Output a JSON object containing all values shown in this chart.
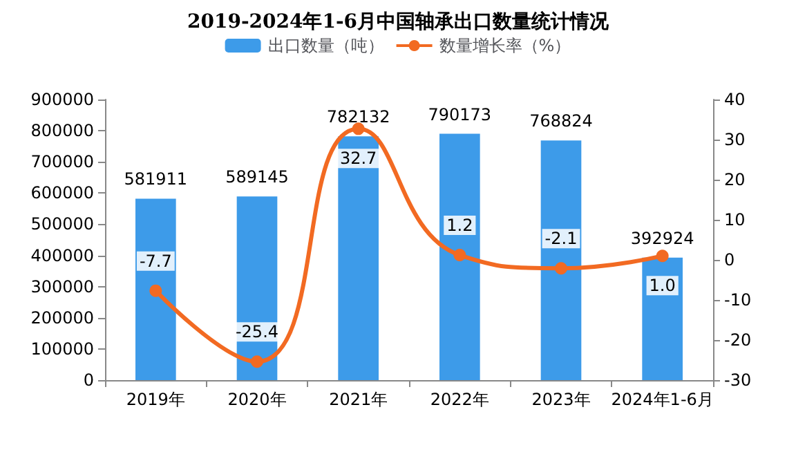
{
  "chart_data": {
    "type": "bar",
    "title": "2019-2024年1-6月中国轴承出口数量统计情况",
    "categories": [
      "2019年",
      "2020年",
      "2021年",
      "2022年",
      "2023年",
      "2024年1-6月"
    ],
    "series": [
      {
        "name": "出口数量（吨）",
        "color": "#3d9be9",
        "values": [
          581911,
          589145,
          782132,
          790173,
          768824,
          392924
        ]
      },
      {
        "name": "数量增长率（%）",
        "type": "line",
        "axis": "y2",
        "color": "#f26a22",
        "values": [
          -7.7,
          -25.4,
          32.7,
          1.2,
          -2.1,
          1.0
        ],
        "value_labels": [
          "-7.7",
          "-25.4",
          "32.7",
          "1.2",
          "-2.1",
          "1.0"
        ]
      }
    ],
    "ylim": [
      0,
      900000
    ],
    "yticks": [
      0,
      100000,
      200000,
      300000,
      400000,
      500000,
      600000,
      700000,
      800000,
      900000
    ],
    "y2lim": [
      -30,
      40
    ],
    "y2ticks": [
      -30,
      -20,
      -10,
      0,
      10,
      20,
      30,
      40
    ],
    "data_labels": true,
    "legend": "top",
    "grid": false,
    "marker": "circle",
    "line_style": "solid"
  }
}
